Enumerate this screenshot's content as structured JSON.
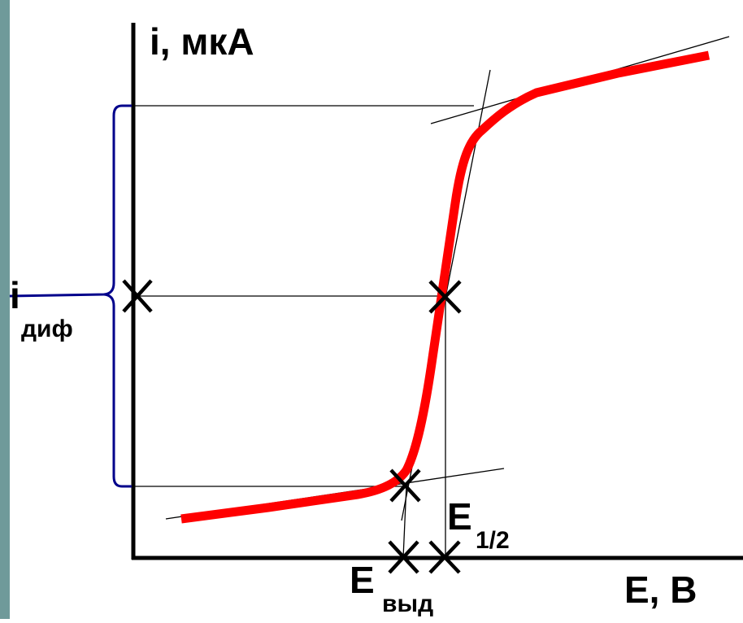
{
  "diagram": {
    "y_axis_label": "i, мкА",
    "x_axis_label": "E, В",
    "diff_current_main": "i",
    "diff_current_sub": "диф",
    "half_wave_main": "E",
    "half_wave_sub": "1/2",
    "release_main": "E",
    "release_sub": "выд"
  },
  "colors": {
    "curve": "#ff0000",
    "axes": "#000000",
    "brace": "#00008b",
    "left_border": "#6f9a9a"
  }
}
